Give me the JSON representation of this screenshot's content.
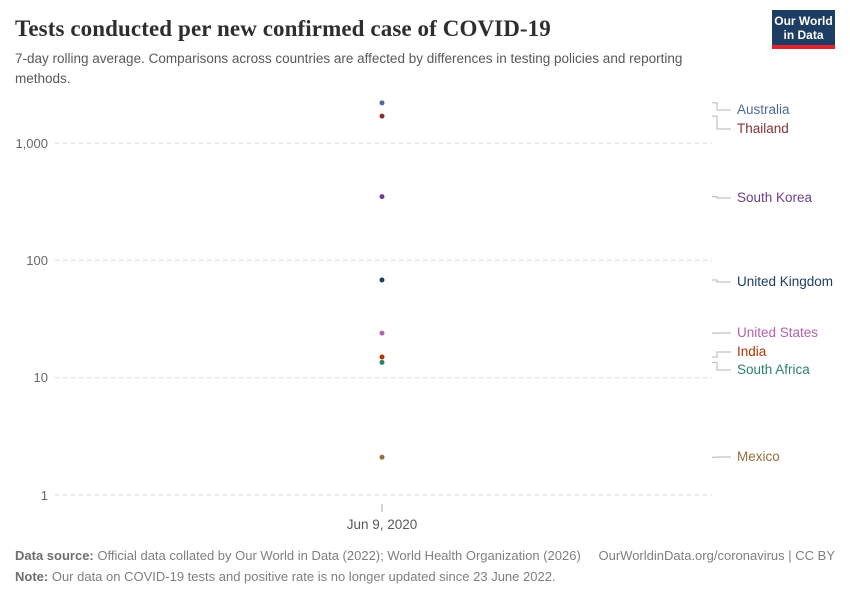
{
  "header": {
    "title": "Tests conducted per new confirmed case of COVID-19",
    "subtitle": "7-day rolling average. Comparisons across countries are affected by differences in testing policies and reporting methods.",
    "logo": {
      "line1": "Our World",
      "line2": "in Data",
      "bg_color": "#1d3d63",
      "accent_color": "#e0232e"
    }
  },
  "chart_data": {
    "type": "scatter",
    "title": "Tests conducted per new confirmed case of COVID-19",
    "x_label": "Jun 9, 2020",
    "x": [
      "Jun 9, 2020"
    ],
    "yscale": "log",
    "ylim": [
      1,
      3000
    ],
    "grid": "horizontal dashed",
    "legend_position": "right entity labels",
    "yticks": [
      {
        "value": 1,
        "label": "1"
      },
      {
        "value": 10,
        "label": "10"
      },
      {
        "value": 100,
        "label": "100"
      },
      {
        "value": 1000,
        "label": "1,000"
      }
    ],
    "series": [
      {
        "name": "Australia",
        "value": 2200,
        "color": "#4C6A9C",
        "label_y": 110
      },
      {
        "name": "Thailand",
        "value": 1700,
        "color": "#883039",
        "label_y": 129
      },
      {
        "name": "South Korea",
        "value": 350,
        "color": "#6D3E91",
        "label_y": 198
      },
      {
        "name": "United Kingdom",
        "value": 68,
        "color": "#1D3D63",
        "label_y": 282
      },
      {
        "name": "United States",
        "value": 24,
        "color": "#B262AD",
        "label_y": 333
      },
      {
        "name": "India",
        "value": 15,
        "color": "#B13507",
        "label_y": 352
      },
      {
        "name": "South Africa",
        "value": 13.5,
        "color": "#2C8465",
        "label_y": 370
      },
      {
        "name": "Mexico",
        "value": 2.1,
        "color": "#996D39",
        "label_y": 457
      }
    ]
  },
  "footer": {
    "datasource_label": "Data source:",
    "datasource_text": " Official data collated by Our World in Data (2022); World Health Organization (2026)",
    "link": "OurWorldinData.org/coronavirus | CC BY",
    "note_label": "Note:",
    "note_text": " Our data on COVID-19 tests and positive rate is no longer updated since 23 June 2022."
  }
}
